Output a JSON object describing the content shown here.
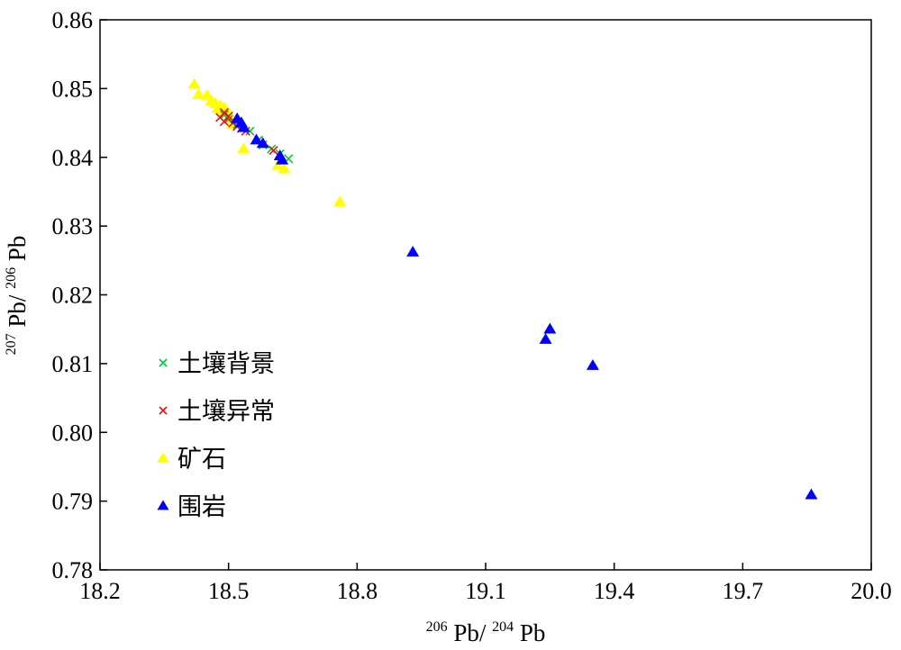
{
  "chart_data": {
    "type": "scatter",
    "title": "",
    "xlabel": {
      "sup1": "206",
      "base1": "Pb/",
      "sup2": "204",
      "base2": "Pb"
    },
    "ylabel": {
      "sup1": "207",
      "base1": "Pb/",
      "sup2": "206",
      "base2": "Pb"
    },
    "xlim": [
      18.2,
      20.0
    ],
    "ylim": [
      0.78,
      0.86
    ],
    "xticks": [
      "18.2",
      "18.5",
      "18.8",
      "19.1",
      "19.4",
      "19.7",
      "20.0"
    ],
    "yticks": [
      "0.78",
      "0.79",
      "0.80",
      "0.81",
      "0.82",
      "0.83",
      "0.84",
      "0.85",
      "0.86"
    ],
    "grid": false,
    "legend_position": "left-middle",
    "series": [
      {
        "name": "土壤背景",
        "marker": "x",
        "color": "#00cc33",
        "points": [
          [
            18.49,
            0.8462
          ],
          [
            18.5,
            0.8455
          ],
          [
            18.52,
            0.8448
          ],
          [
            18.55,
            0.8438
          ],
          [
            18.57,
            0.8425
          ],
          [
            18.58,
            0.8418
          ],
          [
            18.6,
            0.8412
          ],
          [
            18.62,
            0.8405
          ],
          [
            18.64,
            0.8398
          ]
        ]
      },
      {
        "name": "土壤异常",
        "marker": "x",
        "color": "#ee1111",
        "points": [
          [
            18.48,
            0.8458
          ],
          [
            18.49,
            0.8465
          ],
          [
            18.49,
            0.8452
          ],
          [
            18.5,
            0.846
          ],
          [
            18.51,
            0.845
          ],
          [
            18.52,
            0.8445
          ],
          [
            18.53,
            0.8442
          ],
          [
            18.54,
            0.8438
          ],
          [
            18.605,
            0.841
          ]
        ]
      },
      {
        "name": "矿石",
        "marker": "triangle",
        "color": "#ffff00",
        "points": [
          [
            18.42,
            0.8506
          ],
          [
            18.43,
            0.8491
          ],
          [
            18.45,
            0.849
          ],
          [
            18.46,
            0.8482
          ],
          [
            18.47,
            0.8478
          ],
          [
            18.475,
            0.8471
          ],
          [
            18.48,
            0.8475
          ],
          [
            18.485,
            0.8468
          ],
          [
            18.49,
            0.8472
          ],
          [
            18.5,
            0.8465
          ],
          [
            18.505,
            0.8455
          ],
          [
            18.51,
            0.8448
          ],
          [
            18.535,
            0.8412
          ],
          [
            18.615,
            0.8388
          ],
          [
            18.63,
            0.8383
          ],
          [
            18.76,
            0.8335
          ]
        ]
      },
      {
        "name": "围岩",
        "marker": "triangle",
        "color": "#0000ff",
        "points": [
          [
            18.52,
            0.8456
          ],
          [
            18.53,
            0.845
          ],
          [
            18.535,
            0.8443
          ],
          [
            18.565,
            0.8425
          ],
          [
            18.58,
            0.842
          ],
          [
            18.62,
            0.8402
          ],
          [
            18.625,
            0.8396
          ],
          [
            18.93,
            0.8262
          ],
          [
            19.24,
            0.8135
          ],
          [
            19.25,
            0.815
          ],
          [
            19.35,
            0.8097
          ],
          [
            19.86,
            0.7909
          ]
        ]
      }
    ]
  }
}
